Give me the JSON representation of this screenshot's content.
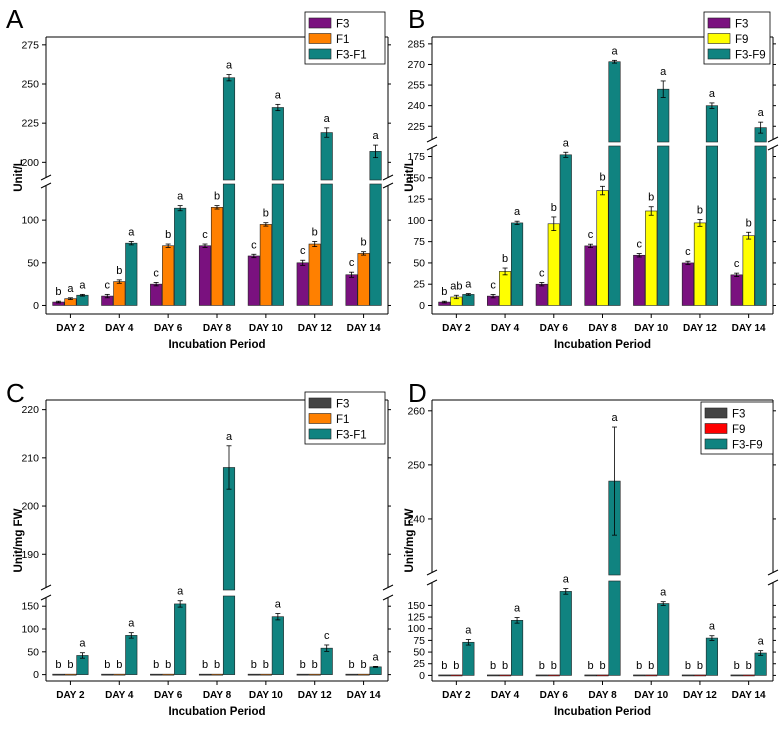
{
  "colors": {
    "purple": "#7a117f",
    "orange": "#ff8000",
    "teal": "#108380",
    "yellow": "#ffff00",
    "gray": "#444444",
    "red": "#ff0000"
  },
  "chart_data": [
    {
      "panel": "A",
      "type": "bar",
      "xlabel": "Incubation Period",
      "ylabel": "Unit/L",
      "categories": [
        "DAY 2",
        "DAY 4",
        "DAY 6",
        "DAY 8",
        "DAY 10",
        "DAY 12",
        "DAY 14"
      ],
      "axis_break": {
        "lower_range": [
          -10,
          140
        ],
        "upper_range": [
          190,
          280
        ]
      },
      "lower_ticks": [
        0,
        50,
        100
      ],
      "upper_ticks": [
        200,
        225,
        250,
        275
      ],
      "series": [
        {
          "name": "F3",
          "color": "#7a117f",
          "values": [
            4,
            11,
            25,
            70,
            58,
            50,
            36
          ],
          "errors": [
            1,
            2,
            2,
            2,
            2,
            3,
            3
          ],
          "letters": [
            "b",
            "c",
            "c",
            "c",
            "c",
            "c",
            "c"
          ]
        },
        {
          "name": "F1",
          "color": "#ff8000",
          "values": [
            8,
            28,
            70,
            115,
            95,
            72,
            61
          ],
          "errors": [
            1,
            2,
            2,
            2,
            2,
            3,
            2
          ],
          "letters": [
            "a",
            "b",
            "b",
            "b",
            "b",
            "b",
            "b"
          ]
        },
        {
          "name": "F3-F1",
          "color": "#108380",
          "values": [
            12,
            73,
            114,
            254,
            235,
            219,
            207
          ],
          "errors": [
            1,
            2,
            3,
            2,
            2,
            3,
            4
          ],
          "letters": [
            "a",
            "a",
            "a",
            "a",
            "a",
            "a",
            "a"
          ]
        }
      ]
    },
    {
      "panel": "B",
      "type": "bar",
      "xlabel": "Incubation Period",
      "ylabel": "Unit/L",
      "categories": [
        "DAY 2",
        "DAY 4",
        "DAY 6",
        "DAY 8",
        "DAY 10",
        "DAY 12",
        "DAY 14"
      ],
      "axis_break": {
        "lower_range": [
          -10,
          185
        ],
        "upper_range": [
          215,
          290
        ]
      },
      "lower_ticks": [
        0,
        25,
        50,
        75,
        100,
        125,
        150,
        175
      ],
      "upper_ticks": [
        225,
        240,
        255,
        270,
        285
      ],
      "series": [
        {
          "name": "F3",
          "color": "#7a117f",
          "values": [
            4,
            11,
            25,
            70,
            59,
            50,
            36
          ],
          "errors": [
            1,
            2,
            2,
            2,
            2,
            2,
            2
          ],
          "letters": [
            "b",
            "c",
            "c",
            "c",
            "c",
            "c",
            "c"
          ]
        },
        {
          "name": "F9",
          "color": "#ffff00",
          "values": [
            10,
            40,
            96,
            135,
            111,
            97,
            82
          ],
          "errors": [
            2,
            4,
            8,
            5,
            5,
            4,
            4
          ],
          "letters": [
            "ab",
            "b",
            "b",
            "b",
            "b",
            "b",
            "b"
          ]
        },
        {
          "name": "F3-F9",
          "color": "#108380",
          "values": [
            13,
            97,
            177,
            272,
            252,
            240,
            224
          ],
          "errors": [
            1,
            2,
            3,
            1,
            6,
            2,
            4
          ],
          "letters": [
            "a",
            "a",
            "a",
            "a",
            "a",
            "a",
            "a"
          ]
        }
      ]
    },
    {
      "panel": "C",
      "type": "bar",
      "xlabel": "Incubation Period",
      "ylabel": "Unit/mg FW",
      "categories": [
        "DAY 2",
        "DAY 4",
        "DAY 6",
        "DAY 8",
        "DAY 10",
        "DAY 12",
        "DAY 14"
      ],
      "axis_break": {
        "lower_range": [
          -14,
          168
        ],
        "upper_range": [
          183,
          222
        ]
      },
      "lower_ticks": [
        0,
        50,
        100,
        150
      ],
      "upper_ticks": [
        190,
        200,
        210,
        220
      ],
      "series": [
        {
          "name": "F3",
          "color": "#444444",
          "values": [
            1,
            1,
            1,
            1,
            1,
            1,
            1
          ],
          "errors": [
            0,
            0,
            0,
            0,
            0,
            0,
            0
          ],
          "letters": [
            "b",
            "b",
            "b",
            "b",
            "b",
            "b",
            "b"
          ]
        },
        {
          "name": "F1",
          "color": "#ff8000",
          "values": [
            1,
            1,
            1,
            1,
            1,
            1,
            1
          ],
          "errors": [
            0,
            0,
            0,
            0,
            0,
            0,
            0
          ],
          "letters": [
            "b",
            "b",
            "b",
            "b",
            "b",
            "b",
            "b"
          ]
        },
        {
          "name": "F3-F1",
          "color": "#108380",
          "values": [
            42,
            86,
            155,
            208,
            127,
            58,
            17
          ],
          "errors": [
            6,
            6,
            7,
            4.5,
            7,
            7,
            1
          ],
          "letters": [
            "a",
            "a",
            "a",
            "a",
            "a",
            "c",
            "a"
          ]
        }
      ]
    },
    {
      "panel": "D",
      "type": "bar",
      "xlabel": "Incubation Period",
      "ylabel": "Unit/mg FW",
      "categories": [
        "DAY 2",
        "DAY 4",
        "DAY 6",
        "DAY 8",
        "DAY 10",
        "DAY 12",
        "DAY 14"
      ],
      "axis_break": {
        "lower_range": [
          -12,
          198
        ],
        "upper_range": [
          230,
          262
        ]
      },
      "lower_ticks": [
        0,
        25,
        50,
        75,
        100,
        125,
        150
      ],
      "upper_ticks": [
        240,
        250,
        260
      ],
      "series": [
        {
          "name": "F3",
          "color": "#444444",
          "values": [
            1,
            1,
            1,
            1,
            1,
            1,
            1
          ],
          "errors": [
            0,
            0,
            0,
            0,
            0,
            0,
            0
          ],
          "letters": [
            "b",
            "b",
            "b",
            "b",
            "b",
            "b",
            "b"
          ]
        },
        {
          "name": "F9",
          "color": "#ff0000",
          "values": [
            1,
            1,
            1,
            1,
            1,
            1,
            1
          ],
          "errors": [
            0,
            0,
            0,
            0,
            0,
            0,
            0
          ],
          "letters": [
            "b",
            "b",
            "b",
            "b",
            "b",
            "b",
            "b"
          ]
        },
        {
          "name": "F3-F9",
          "color": "#108380",
          "values": [
            71,
            118,
            180,
            247,
            154,
            80,
            48
          ],
          "errors": [
            6,
            6,
            6,
            10,
            4,
            5,
            5
          ],
          "letters": [
            "a",
            "a",
            "a",
            "a",
            "a",
            "a",
            "a"
          ]
        }
      ]
    }
  ]
}
